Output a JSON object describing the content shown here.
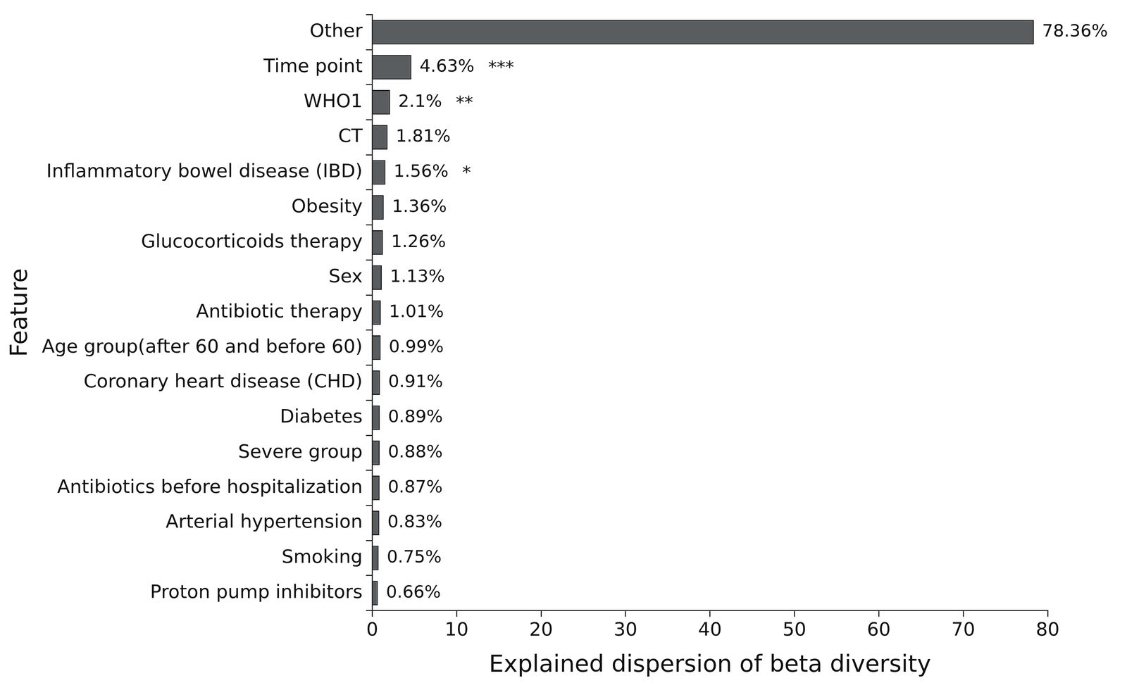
{
  "chart_data": {
    "type": "bar",
    "orientation": "horizontal",
    "categories": [
      "Other",
      "Time point",
      "WHO1",
      "CT",
      "Inflammatory bowel disease (IBD)",
      "Obesity",
      "Glucocorticoids therapy",
      "Sex",
      "Antibiotic therapy",
      "Age group(after 60 and before 60)",
      "Coronary heart disease (CHD)",
      "Diabetes",
      "Severe group",
      "Antibiotics before hospitalization",
      "Arterial hypertension",
      "Smoking",
      "Proton pump inhibitors"
    ],
    "values": [
      78.36,
      4.63,
      2.1,
      1.81,
      1.56,
      1.36,
      1.26,
      1.13,
      1.01,
      0.99,
      0.91,
      0.89,
      0.88,
      0.87,
      0.83,
      0.75,
      0.66
    ],
    "value_labels": [
      "78.36%",
      "4.63%",
      "2.1%",
      "1.81%",
      "1.56%",
      "1.36%",
      "1.26%",
      "1.13%",
      "1.01%",
      "0.99%",
      "0.91%",
      "0.89%",
      "0.88%",
      "0.87%",
      "0.83%",
      "0.75%",
      "0.66%"
    ],
    "significance": [
      null,
      "***",
      "**",
      null,
      "*",
      null,
      null,
      null,
      null,
      null,
      null,
      null,
      null,
      null,
      null,
      null,
      null
    ],
    "color": "#5a5d60",
    "xlim": [
      0,
      80
    ],
    "xticks": [
      0,
      10,
      20,
      30,
      40,
      50,
      60,
      70,
      80
    ],
    "xlabel": "Explained dispersion of beta diversity",
    "ylabel": "Feature",
    "grid": false,
    "data_labels": true
  }
}
